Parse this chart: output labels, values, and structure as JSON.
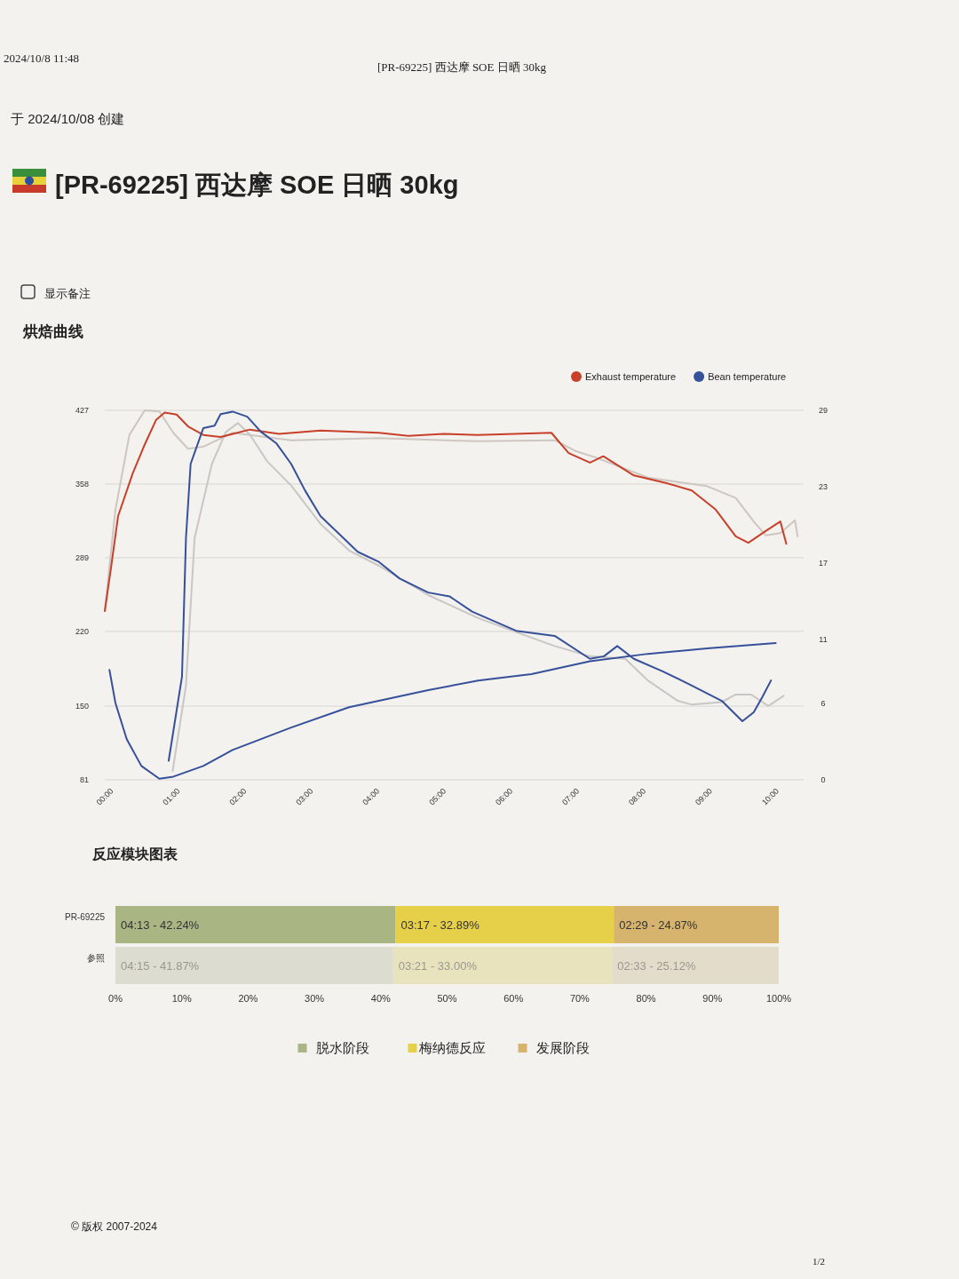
{
  "chart_data": [
    {
      "type": "line",
      "title": "烘焙曲线",
      "annotations": [
        "2024/10/8 11:48",
        "[PR-69225] 西达摩 SOE 日晒 30kg",
        "于 2024/10/08 创建",
        "[PR-69225] 西达摩 SOE 日晒 30kg",
        "显示备注",
        "© 版权 2007-2024",
        "1/2"
      ],
      "xlim": [
        0,
        10.5
      ],
      "xticks": [
        {
          "value": 0,
          "label": "00:00"
        },
        {
          "value": 1,
          "label": "01:00"
        },
        {
          "value": 2,
          "label": "02:00"
        },
        {
          "value": 3,
          "label": "03:00"
        },
        {
          "value": 4,
          "label": "04:00"
        },
        {
          "value": 5,
          "label": "05:00"
        },
        {
          "value": 6,
          "label": "06:00"
        },
        {
          "value": 7,
          "label": "07:00"
        },
        {
          "value": 8,
          "label": "08:00"
        },
        {
          "value": 9,
          "label": "09:00"
        },
        {
          "value": 10,
          "label": "10:00"
        }
      ],
      "ylim": [
        81,
        427
      ],
      "yticks": [
        81,
        150,
        220,
        289,
        358,
        427
      ],
      "y2lim": [
        0,
        29
      ],
      "y2ticks": [
        0,
        6,
        11,
        17,
        23,
        29
      ],
      "grid": "y",
      "legend": "top right",
      "series": [
        {
          "color": "#cdc6c1",
          "x": [
            0,
            0.16,
            0.37,
            0.6,
            0.82,
            1.03,
            1.25,
            1.48,
            1.92,
            2.8,
            4.12,
            5.61,
            6.76,
            7.07,
            7.37,
            8.16,
            9.05,
            9.48,
            9.75,
            9.93,
            10.15,
            10.37,
            10.41
          ],
          "values": [
            239,
            334,
            404,
            427,
            426,
            406,
            391,
            393,
            406,
            399,
            401,
            398,
            399,
            389,
            383,
            364,
            356,
            345,
            323,
            310,
            312,
            324,
            309
          ]
        },
        {
          "color": "#c9c6c6",
          "axis": "y2",
          "x": [
            1.02,
            1.22,
            1.35,
            1.61,
            1.82,
            2.0,
            2.18,
            2.44,
            2.8,
            3.24,
            3.67,
            4.12,
            4.86,
            5.61,
            6.18,
            6.76,
            7.29,
            7.82,
            8.16,
            8.61,
            8.82,
            9.27,
            9.48,
            9.71,
            9.97,
            10.2
          ],
          "values": [
            0.7,
            7.4,
            19,
            24.8,
            27.3,
            28,
            27.1,
            25,
            23.1,
            20.1,
            18,
            16.8,
            14.5,
            12.7,
            11.6,
            10.5,
            9.7,
            9.5,
            7.8,
            6.2,
            5.9,
            6.1,
            6.7,
            6.7,
            5.8,
            6.6
          ]
        },
        {
          "name": "Exhaust temperature",
          "color": "#c8402a",
          "x": [
            0,
            0.09,
            0.2,
            0.42,
            0.6,
            0.77,
            0.9,
            1.08,
            1.25,
            1.48,
            1.74,
            2.18,
            2.62,
            3.24,
            4.12,
            4.56,
            5.09,
            5.6,
            6.71,
            6.97,
            7.29,
            7.49,
            7.95,
            8.43,
            8.82,
            9.18,
            9.48,
            9.67,
            9.93,
            10.15,
            10.24
          ],
          "values": [
            239,
            278,
            328,
            368,
            395,
            418,
            425,
            423,
            412,
            404,
            402,
            409,
            405,
            408,
            406,
            403,
            405,
            404,
            406,
            387,
            378,
            384,
            366,
            359,
            352,
            334,
            309,
            303,
            314,
            323,
            302
          ]
        },
        {
          "name": "Bean temperature",
          "color": "#36509a",
          "x": [
            0.07,
            0.16,
            0.33,
            0.55,
            0.82,
            1.03,
            1.48,
            1.92,
            2.8,
            3.67,
            4.86,
            5.61,
            6.41,
            7.29,
            8.16,
            9.05,
            10.08
          ],
          "values": [
            184,
            153,
            119,
            94,
            82,
            84,
            94,
            109,
            130,
            149,
            165,
            174,
            180,
            192,
            199,
            204,
            209
          ]
        },
        {
          "color": "#36509a",
          "axis": "y2",
          "x": [
            0.96,
            1.16,
            1.22,
            1.29,
            1.48,
            1.65,
            1.74,
            1.92,
            2.14,
            2.35,
            2.58,
            2.8,
            3.01,
            3.24,
            3.54,
            3.8,
            4.12,
            4.43,
            4.86,
            5.18,
            5.52,
            6.18,
            6.76,
            7.29,
            7.5,
            7.7,
            7.95,
            8.39,
            8.82,
            9.27,
            9.58,
            9.75,
            9.88,
            10.01
          ],
          "values": [
            1.5,
            8.1,
            19,
            24.8,
            27.6,
            27.8,
            28.7,
            28.9,
            28.5,
            27.3,
            26.4,
            24.8,
            22.7,
            20.7,
            19.2,
            17.9,
            17.1,
            15.8,
            14.7,
            14.4,
            13.2,
            11.7,
            11.3,
            9.5,
            9.7,
            10.5,
            9.5,
            8.5,
            7.4,
            6.2,
            4.6,
            5.3,
            6.5,
            7.8
          ]
        }
      ]
    },
    {
      "type": "bar",
      "title": "反应模块图表",
      "orientation": "horizontal",
      "stacked": true,
      "categories": [
        "PR-69225",
        "参照"
      ],
      "xlim": [
        0,
        100
      ],
      "xticks": [
        {
          "value": 0,
          "label": "0%"
        },
        {
          "value": 10,
          "label": "10%"
        },
        {
          "value": 20,
          "label": "20%"
        },
        {
          "value": 30,
          "label": "30%"
        },
        {
          "value": 40,
          "label": "40%"
        },
        {
          "value": 50,
          "label": "50%"
        },
        {
          "value": 60,
          "label": "60%"
        },
        {
          "value": 70,
          "label": "70%"
        },
        {
          "value": 80,
          "label": "80%"
        },
        {
          "value": 90,
          "label": "90%"
        },
        {
          "value": 100,
          "label": "100%"
        }
      ],
      "legend": "bottom",
      "series": [
        {
          "name": "脱水阶段",
          "colors": [
            "#a9b583",
            "#dcdcd0"
          ],
          "values": [
            42.24,
            41.87
          ]
        },
        {
          "name": "梅纳德反应",
          "colors": [
            "#e6d04a",
            "#e9e3bd"
          ],
          "values": [
            32.89,
            33.0
          ]
        },
        {
          "name": "发展阶段",
          "colors": [
            "#d6b46e",
            "#e4dccb"
          ],
          "values": [
            24.87,
            25.12
          ]
        }
      ],
      "annotations": [
        {
          "text": "04:13 - 42.24%",
          "x": 0,
          "y": "PR-69225"
        },
        {
          "text": "04:15 - 41.87%",
          "x": 0,
          "y": "参照"
        },
        {
          "text": "03:17 - 32.89%",
          "x": 42.24,
          "y": "PR-69225"
        },
        {
          "text": "03:21 - 33.00%",
          "x": 41.87,
          "y": "参照"
        },
        {
          "text": "02:29 - 24.87%",
          "x": 75.13,
          "y": "PR-69225"
        },
        {
          "text": "02:33 - 25.12%",
          "x": 74.87,
          "y": "参照"
        }
      ]
    }
  ]
}
